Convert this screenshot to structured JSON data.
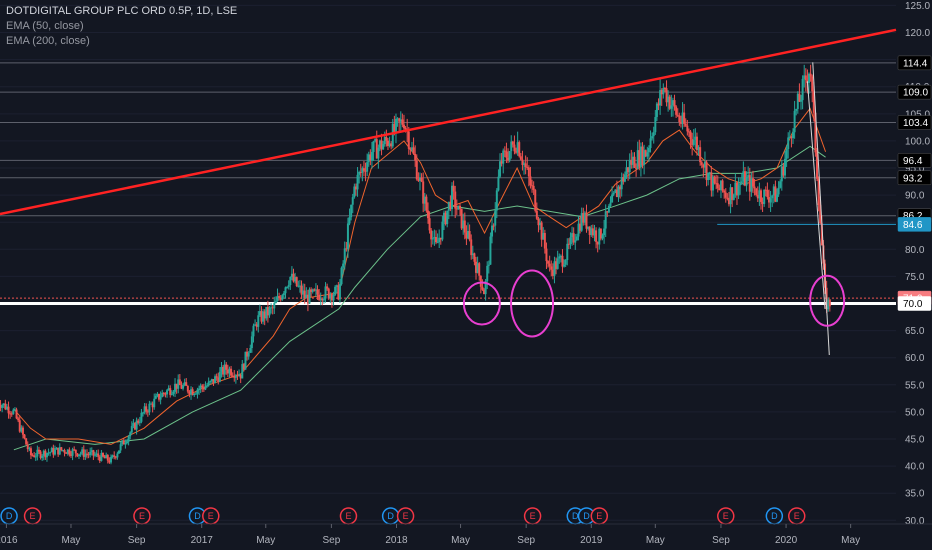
{
  "legend": {
    "title": "DOTDIGITAL GROUP PLC ORD 0.5P, 1D, LSE",
    "ema50": "EMA (50, close)",
    "ema200": "EMA (200, close)"
  },
  "colors": {
    "background": "#131722",
    "up_candle": "#26a69a",
    "down_candle": "#ef5350",
    "ema50": "#f0642d",
    "ema200": "#6cc18a",
    "trendline": "#ff2222",
    "support_line": "#ffffff",
    "circle": "#e83fd0",
    "hline": "#5d606b",
    "blue_line": "#2196c6",
    "event_e": "#f23645",
    "event_d": "#2196f3"
  },
  "chart_data": {
    "type": "candlestick",
    "title": "DOTDIGITAL GROUP PLC ORD 0.5P, 1D, LSE",
    "series": [
      {
        "name": "EMA (50, close)",
        "type": "line",
        "points": [
          [
            "2016-01",
            50.5
          ],
          [
            "2016-02",
            47
          ],
          [
            "2016-03",
            45
          ],
          [
            "2016-05",
            45
          ],
          [
            "2016-07",
            44
          ],
          [
            "2016-09",
            47
          ],
          [
            "2016-11",
            52
          ],
          [
            "2017-01",
            55
          ],
          [
            "2017-03",
            57
          ],
          [
            "2017-05",
            64
          ],
          [
            "2017-06",
            69
          ],
          [
            "2017-07",
            71
          ],
          [
            "2017-09",
            72
          ],
          [
            "2017-10",
            85
          ],
          [
            "2017-11",
            95
          ],
          [
            "2018-01",
            100
          ],
          [
            "2018-02",
            96
          ],
          [
            "2018-03",
            90
          ],
          [
            "2018-04",
            88
          ],
          [
            "2018-05",
            89
          ],
          [
            "2018-06",
            83
          ],
          [
            "2018-07",
            89
          ],
          [
            "2018-08",
            95
          ],
          [
            "2018-09",
            88
          ],
          [
            "2018-10",
            86
          ],
          [
            "2018-11",
            84
          ],
          [
            "2018-12",
            86
          ],
          [
            "2019-01",
            88
          ],
          [
            "2019-02",
            92
          ],
          [
            "2019-04",
            96
          ],
          [
            "2019-05",
            100
          ],
          [
            "2019-06",
            102
          ],
          [
            "2019-07",
            98
          ],
          [
            "2019-08",
            95
          ],
          [
            "2019-09",
            93
          ],
          [
            "2019-10",
            92
          ],
          [
            "2019-11",
            93
          ],
          [
            "2019-12",
            95
          ],
          [
            "2020-01",
            102
          ],
          [
            "2020-02",
            106
          ],
          [
            "2020-03",
            98
          ]
        ]
      },
      {
        "name": "EMA (200, close)",
        "type": "line",
        "points": [
          [
            "2016-01",
            43
          ],
          [
            "2016-03",
            45
          ],
          [
            "2016-06",
            44
          ],
          [
            "2016-09",
            45
          ],
          [
            "2016-12",
            50
          ],
          [
            "2017-03",
            54
          ],
          [
            "2017-06",
            63
          ],
          [
            "2017-09",
            69
          ],
          [
            "2017-10",
            73
          ],
          [
            "2017-12",
            80
          ],
          [
            "2018-02",
            86
          ],
          [
            "2018-04",
            88
          ],
          [
            "2018-06",
            87
          ],
          [
            "2018-08",
            88
          ],
          [
            "2018-10",
            87
          ],
          [
            "2018-12",
            86
          ],
          [
            "2019-02",
            88
          ],
          [
            "2019-04",
            90
          ],
          [
            "2019-06",
            93
          ],
          [
            "2019-08",
            94
          ],
          [
            "2019-10",
            94
          ],
          [
            "2019-12",
            95
          ],
          [
            "2020-02",
            99
          ],
          [
            "2020-03",
            97
          ]
        ]
      },
      {
        "name": "",
        "type": "candles",
        "anchors": [
          [
            "2015-12",
            52
          ],
          [
            "2016-01",
            50
          ],
          [
            "2016-02",
            42
          ],
          [
            "2016-04",
            43
          ],
          [
            "2016-06",
            42
          ],
          [
            "2016-07",
            41
          ],
          [
            "2016-09",
            50
          ],
          [
            "2016-10",
            53
          ],
          [
            "2016-11",
            55
          ],
          [
            "2016-12",
            54
          ],
          [
            "2017-01",
            55
          ],
          [
            "2017-02",
            58
          ],
          [
            "2017-03",
            57
          ],
          [
            "2017-04",
            67
          ],
          [
            "2017-05",
            69
          ],
          [
            "2017-06",
            75
          ],
          [
            "2017-07",
            71
          ],
          [
            "2017-08",
            72
          ],
          [
            "2017-09",
            72
          ],
          [
            "2017-10",
            92
          ],
          [
            "2017-11",
            98
          ],
          [
            "2017-12",
            100
          ],
          [
            "2018-01",
            104
          ],
          [
            "2018-02",
            92
          ],
          [
            "2018-03",
            80
          ],
          [
            "2018-04",
            90
          ],
          [
            "2018-05",
            82
          ],
          [
            "2018-06",
            72
          ],
          [
            "2018-07",
            96
          ],
          [
            "2018-08",
            100
          ],
          [
            "2018-09",
            90
          ],
          [
            "2018-10",
            76
          ],
          [
            "2018-11",
            79
          ],
          [
            "2018-12",
            86
          ],
          [
            "2019-01",
            82
          ],
          [
            "2019-02",
            90
          ],
          [
            "2019-03",
            96
          ],
          [
            "2019-04",
            98
          ],
          [
            "2019-05",
            110
          ],
          [
            "2019-06",
            104
          ],
          [
            "2019-07",
            100
          ],
          [
            "2019-08",
            92
          ],
          [
            "2019-09",
            90
          ],
          [
            "2019-10",
            93
          ],
          [
            "2019-11",
            90
          ],
          [
            "2019-12",
            90
          ],
          [
            "2020-01",
            104
          ],
          [
            "2020-02",
            114
          ],
          [
            "2020-03",
            70
          ]
        ]
      }
    ],
    "x_ticks": [
      "2016",
      "May",
      "Sep",
      "2017",
      "May",
      "Sep",
      "2018",
      "May",
      "Sep",
      "2019",
      "May",
      "Sep",
      "2020",
      "May"
    ],
    "y_ticks": [
      30.0,
      35.0,
      40.0,
      45.0,
      50.0,
      55.0,
      60.0,
      65.0,
      70.0,
      75.0,
      80.0,
      85.0,
      90.0,
      95.0,
      100.0,
      105.0,
      110.0,
      115.0,
      120.0,
      125.0
    ],
    "ylim": [
      29.5,
      126
    ],
    "x_range": [
      "2015-12-20",
      "2020-07-25"
    ],
    "horizontal_levels": [
      {
        "value": 114.4,
        "label": "114.4",
        "style": "black-label"
      },
      {
        "value": 109.0,
        "label": "109.0",
        "style": "black-label"
      },
      {
        "value": 103.4,
        "label": "103.4",
        "style": "black-label"
      },
      {
        "value": 96.4,
        "label": "96.4",
        "style": "black-label"
      },
      {
        "value": 93.2,
        "label": "93.2",
        "style": "black-label"
      },
      {
        "value": 86.2,
        "label": "86.2",
        "style": "black-label"
      },
      {
        "value": 84.6,
        "label": "84.6",
        "style": "blue-label"
      },
      {
        "value": 71.0,
        "label": "71.0",
        "style": "red-label"
      },
      {
        "value": 70.0,
        "label": "70.0",
        "style": "white-label"
      }
    ],
    "trendline": {
      "from": [
        "2015-12-20",
        86.5
      ],
      "to": [
        "2020-07-25",
        120.5
      ]
    },
    "events": [
      {
        "type": "D",
        "date": "2016-01-06"
      },
      {
        "type": "E",
        "date": "2016-02-19"
      },
      {
        "type": "E",
        "date": "2016-09-11"
      },
      {
        "type": "D",
        "date": "2016-12-24"
      },
      {
        "type": "E",
        "date": "2017-01-18"
      },
      {
        "type": "E",
        "date": "2017-10-03"
      },
      {
        "type": "D",
        "date": "2017-12-21"
      },
      {
        "type": "E",
        "date": "2018-01-18"
      },
      {
        "type": "E",
        "date": "2018-09-13"
      },
      {
        "type": "D",
        "date": "2018-12-02"
      },
      {
        "type": "D",
        "date": "2018-12-23"
      },
      {
        "type": "E",
        "date": "2019-01-16"
      },
      {
        "type": "E",
        "date": "2019-09-10"
      },
      {
        "type": "D",
        "date": "2019-12-10"
      },
      {
        "type": "E",
        "date": "2020-01-21"
      }
    ]
  }
}
